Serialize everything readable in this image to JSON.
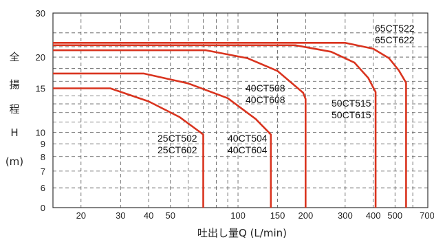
{
  "chart_data": {
    "type": "line",
    "xlabel": "吐出し量Q (L/min)",
    "ylabel_chars": [
      "全",
      "揚",
      "程",
      "H",
      "(m)"
    ],
    "x_scale": "log",
    "y_scale": "log",
    "x_ticks": [
      "20",
      "30",
      "40",
      "50",
      "100",
      "150",
      "200",
      "300",
      "400",
      "500",
      "700"
    ],
    "y_ticks": [
      "30",
      "20",
      "15",
      "10",
      "9",
      "8",
      "7",
      "6",
      "0"
    ],
    "grid": true,
    "colors": {
      "curve": "#d9341f",
      "grid": "#555555",
      "frame": "#333333"
    },
    "series": [
      {
        "labels": [
          "25CT502",
          "25CT602"
        ],
        "points": [
          [
            15,
            15
          ],
          [
            27,
            15
          ],
          [
            40,
            13.3
          ],
          [
            55,
            11.5
          ],
          [
            68,
            10
          ],
          [
            70,
            9.8
          ],
          [
            70,
            5
          ]
        ]
      },
      {
        "labels": [
          "40CT504",
          "40CT604"
        ],
        "points": [
          [
            15,
            17.2
          ],
          [
            38,
            17.2
          ],
          [
            60,
            15.7
          ],
          [
            90,
            13.7
          ],
          [
            120,
            11.3
          ],
          [
            140,
            9.8
          ],
          [
            140,
            5
          ]
        ]
      },
      {
        "labels": [
          "40CT508",
          "40CT608"
        ],
        "points": [
          [
            15,
            21.3
          ],
          [
            72,
            21.3
          ],
          [
            110,
            19.8
          ],
          [
            150,
            17.6
          ],
          [
            195,
            14.4
          ],
          [
            200,
            13.6
          ],
          [
            200,
            5
          ]
        ]
      },
      {
        "labels": [
          "50CT515",
          "50CT615"
        ],
        "points": [
          [
            15,
            22.3
          ],
          [
            180,
            22.3
          ],
          [
            260,
            21.0
          ],
          [
            330,
            19.0
          ],
          [
            380,
            16.5
          ],
          [
            410,
            14.5
          ],
          [
            410,
            5
          ]
        ]
      },
      {
        "labels": [
          "65CT522",
          "65CT622"
        ],
        "points": [
          [
            15,
            22.8
          ],
          [
            300,
            22.8
          ],
          [
            400,
            21.6
          ],
          [
            470,
            19.8
          ],
          [
            520,
            17.7
          ],
          [
            560,
            15.8
          ],
          [
            560,
            5
          ]
        ]
      }
    ]
  }
}
